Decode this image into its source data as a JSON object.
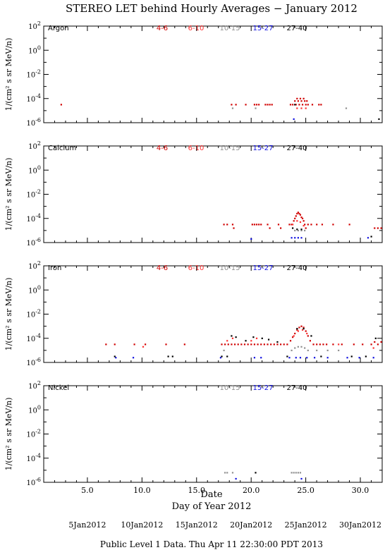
{
  "title": "STEREO LET behind Hourly Averages − January 2012",
  "ylabel": "1/(cm² s sr MeV/n)",
  "xlabel_top": "Date",
  "xlabel": "Day of Year 2012",
  "footer": "Public Level 1 Data. Thu Apr 11 22:30:00 PDT 2013",
  "date_labels": [
    {
      "doy": 5,
      "label": "5Jan2012"
    },
    {
      "doy": 10,
      "label": "10Jan2012"
    },
    {
      "doy": 15,
      "label": "15Jan2012"
    },
    {
      "doy": 20,
      "label": "20Jan2012"
    },
    {
      "doy": 25,
      "label": "25Jan2012"
    },
    {
      "doy": 30,
      "label": "30Jan2012"
    }
  ],
  "series_colors": {
    "4-6": "#d00000",
    "6-10": "#ff3030",
    "10-15": "#909090",
    "15-27": "#1010e0",
    "27-40": "#000000"
  },
  "chart_data": [
    {
      "type": "scatter",
      "panel": "Argon",
      "xlim": [
        1.0,
        32.0
      ],
      "x_ticks": [
        5.0,
        10.0,
        15.0,
        20.0,
        25.0,
        30.0
      ],
      "x_ticks_labels": [
        "5.0",
        "10.0",
        "15.0",
        "20.0",
        "25.0",
        "30.0"
      ],
      "y_log": true,
      "ylim_log10": [
        -6,
        2
      ],
      "y_ticks_exponents": [
        2,
        0,
        -2,
        -4,
        -6
      ],
      "legend": [
        "4-6",
        "6-10",
        "10-15",
        "15-27",
        "27-40"
      ],
      "series": [
        {
          "name": "4-6",
          "points": [
            [
              2.6,
              -4.5
            ],
            [
              18.2,
              -4.5
            ],
            [
              18.6,
              -4.5
            ],
            [
              19.5,
              -4.5
            ],
            [
              20.3,
              -4.5
            ],
            [
              20.5,
              -4.5
            ],
            [
              20.7,
              -4.5
            ],
            [
              21.3,
              -4.5
            ],
            [
              21.5,
              -4.5
            ],
            [
              21.7,
              -4.5
            ],
            [
              21.9,
              -4.5
            ],
            [
              23.6,
              -4.5
            ],
            [
              23.8,
              -4.5
            ],
            [
              24.0,
              -4.2
            ],
            [
              24.1,
              -4.5
            ],
            [
              24.2,
              -4.0
            ],
            [
              24.3,
              -4.2
            ],
            [
              24.4,
              -4.5
            ],
            [
              24.5,
              -4.0
            ],
            [
              24.6,
              -4.2
            ],
            [
              24.7,
              -4.5
            ],
            [
              24.8,
              -4.0
            ],
            [
              24.9,
              -4.2
            ],
            [
              25.0,
              -4.5
            ],
            [
              25.1,
              -4.2
            ],
            [
              25.2,
              -4.5
            ],
            [
              25.6,
              -4.5
            ],
            [
              26.2,
              -4.5
            ],
            [
              26.4,
              -4.5
            ]
          ]
        },
        {
          "name": "6-10",
          "points": [
            [
              24.2,
              -4.8
            ],
            [
              24.6,
              -4.8
            ],
            [
              25.0,
              -4.8
            ]
          ]
        },
        {
          "name": "10-15",
          "points": [
            [
              18.3,
              -4.8
            ],
            [
              20.4,
              -4.8
            ],
            [
              28.7,
              -4.8
            ]
          ]
        },
        {
          "name": "15-27",
          "points": [
            [
              23.9,
              -5.7
            ]
          ]
        },
        {
          "name": "27-40",
          "points": [
            [
              24.0,
              -4.5
            ],
            [
              31.7,
              -5.7
            ]
          ]
        }
      ]
    },
    {
      "type": "scatter",
      "panel": "Calcium",
      "xlim": [
        1.0,
        32.0
      ],
      "x_ticks": [
        5.0,
        10.0,
        15.0,
        20.0,
        25.0,
        30.0
      ],
      "y_log": true,
      "ylim_log10": [
        -6,
        2
      ],
      "y_ticks_exponents": [
        2,
        0,
        -2,
        -4,
        -6
      ],
      "legend": [
        "4-6",
        "6-10",
        "10-15",
        "15-27",
        "27-40"
      ],
      "series": [
        {
          "name": "4-6",
          "points": [
            [
              17.5,
              -4.5
            ],
            [
              17.8,
              -4.5
            ],
            [
              18.3,
              -4.5
            ],
            [
              18.4,
              -4.8
            ],
            [
              20.1,
              -4.5
            ],
            [
              20.3,
              -4.5
            ],
            [
              20.5,
              -4.5
            ],
            [
              20.7,
              -4.5
            ],
            [
              20.9,
              -4.5
            ],
            [
              21.5,
              -4.5
            ],
            [
              21.7,
              -4.8
            ],
            [
              22.5,
              -4.5
            ],
            [
              22.7,
              -4.8
            ],
            [
              23.5,
              -4.5
            ],
            [
              23.7,
              -4.5
            ],
            [
              23.9,
              -4.2
            ],
            [
              24.0,
              -4.0
            ],
            [
              24.1,
              -3.8
            ],
            [
              24.2,
              -3.6
            ],
            [
              24.3,
              -3.5
            ],
            [
              24.4,
              -3.6
            ],
            [
              24.5,
              -3.7
            ],
            [
              24.6,
              -3.9
            ],
            [
              24.7,
              -4.0
            ],
            [
              24.8,
              -4.2
            ],
            [
              24.9,
              -4.5
            ],
            [
              25.0,
              -4.8
            ],
            [
              25.2,
              -4.5
            ],
            [
              25.5,
              -4.5
            ],
            [
              26.0,
              -4.5
            ],
            [
              26.5,
              -4.5
            ],
            [
              27.5,
              -4.5
            ],
            [
              29.0,
              -4.5
            ],
            [
              31.3,
              -4.8
            ],
            [
              31.6,
              -4.8
            ],
            [
              31.9,
              -4.8
            ]
          ]
        },
        {
          "name": "6-10",
          "points": [
            [
              23.8,
              -4.5
            ],
            [
              24.2,
              -4.2
            ],
            [
              24.5,
              -4.3
            ],
            [
              24.8,
              -4.6
            ]
          ]
        },
        {
          "name": "10-15",
          "points": [
            [
              24.0,
              -5.0
            ],
            [
              24.3,
              -5.0
            ],
            [
              24.6,
              -5.0
            ],
            [
              24.9,
              -5.0
            ]
          ]
        },
        {
          "name": "15-27",
          "points": [
            [
              20.0,
              -5.7
            ],
            [
              23.7,
              -5.6
            ],
            [
              24.0,
              -5.6
            ],
            [
              24.3,
              -5.6
            ],
            [
              24.6,
              -5.6
            ],
            [
              30.7,
              -5.6
            ]
          ]
        },
        {
          "name": "27-40",
          "points": [
            [
              23.8,
              -4.8
            ],
            [
              24.2,
              -4.9
            ],
            [
              24.6,
              -4.9
            ],
            [
              31.0,
              -5.5
            ]
          ]
        }
      ]
    },
    {
      "type": "scatter",
      "panel": "Iron",
      "xlim": [
        1.0,
        32.0
      ],
      "x_ticks": [
        5.0,
        10.0,
        15.0,
        20.0,
        25.0,
        30.0
      ],
      "y_log": true,
      "ylim_log10": [
        -6,
        2
      ],
      "y_ticks_exponents": [
        2,
        0,
        -2,
        -4,
        -6
      ],
      "legend": [
        "4-6",
        "6-10",
        "10-15",
        "15-27",
        "27-40"
      ],
      "series": [
        {
          "name": "4-6",
          "points": [
            [
              6.7,
              -4.5
            ],
            [
              7.5,
              -4.5
            ],
            [
              9.3,
              -4.5
            ],
            [
              10.3,
              -4.5
            ],
            [
              12.2,
              -4.5
            ],
            [
              13.9,
              -4.5
            ],
            [
              17.3,
              -4.5
            ],
            [
              17.6,
              -4.5
            ],
            [
              17.9,
              -4.5
            ],
            [
              18.2,
              -4.5
            ],
            [
              18.5,
              -4.5
            ],
            [
              18.8,
              -4.5
            ],
            [
              19.1,
              -4.5
            ],
            [
              19.4,
              -4.5
            ],
            [
              19.7,
              -4.5
            ],
            [
              20.0,
              -4.5
            ],
            [
              20.3,
              -4.5
            ],
            [
              20.6,
              -4.5
            ],
            [
              20.9,
              -4.5
            ],
            [
              21.2,
              -4.5
            ],
            [
              21.5,
              -4.5
            ],
            [
              21.8,
              -4.5
            ],
            [
              22.1,
              -4.5
            ],
            [
              22.4,
              -4.5
            ],
            [
              22.7,
              -4.5
            ],
            [
              23.0,
              -4.5
            ],
            [
              23.3,
              -4.5
            ],
            [
              23.6,
              -4.2
            ],
            [
              23.8,
              -3.9
            ],
            [
              24.0,
              -3.6
            ],
            [
              24.2,
              -3.3
            ],
            [
              24.4,
              -3.1
            ],
            [
              24.6,
              -3.0
            ],
            [
              24.8,
              -3.1
            ],
            [
              25.0,
              -3.4
            ],
            [
              25.2,
              -3.8
            ],
            [
              25.4,
              -4.2
            ],
            [
              25.7,
              -4.5
            ],
            [
              26.0,
              -4.5
            ],
            [
              26.3,
              -4.5
            ],
            [
              26.6,
              -4.5
            ],
            [
              26.9,
              -4.5
            ],
            [
              27.5,
              -4.5
            ],
            [
              28.3,
              -4.5
            ],
            [
              29.4,
              -4.5
            ],
            [
              30.2,
              -4.5
            ],
            [
              31.0,
              -4.5
            ],
            [
              31.3,
              -4.3
            ],
            [
              31.6,
              -4.5
            ],
            [
              31.9,
              -4.3
            ]
          ]
        },
        {
          "name": "6-10",
          "points": [
            [
              10.1,
              -4.7
            ],
            [
              17.8,
              -4.2
            ],
            [
              18.3,
              -4.0
            ],
            [
              20.0,
              -4.2
            ],
            [
              20.5,
              -4.0
            ],
            [
              23.9,
              -3.8
            ],
            [
              24.3,
              -3.4
            ],
            [
              24.7,
              -3.3
            ],
            [
              25.1,
              -3.6
            ],
            [
              28.0,
              -4.5
            ],
            [
              31.2,
              -4.8
            ]
          ]
        },
        {
          "name": "10-15",
          "points": [
            [
              17.5,
              -5.0
            ],
            [
              23.7,
              -5.0
            ],
            [
              24.0,
              -4.8
            ],
            [
              24.3,
              -4.7
            ],
            [
              24.6,
              -4.7
            ],
            [
              24.9,
              -4.8
            ],
            [
              25.2,
              -5.0
            ],
            [
              26.0,
              -5.0
            ],
            [
              27.0,
              -5.0
            ],
            [
              28.0,
              -5.0
            ]
          ]
        },
        {
          "name": "15-27",
          "points": [
            [
              7.6,
              -5.6
            ],
            [
              9.2,
              -5.6
            ],
            [
              17.2,
              -5.6
            ],
            [
              20.3,
              -5.6
            ],
            [
              20.9,
              -5.6
            ],
            [
              23.5,
              -5.6
            ],
            [
              24.1,
              -5.6
            ],
            [
              24.5,
              -5.6
            ],
            [
              25.1,
              -5.6
            ],
            [
              25.8,
              -5.6
            ],
            [
              27.0,
              -5.6
            ],
            [
              28.8,
              -5.6
            ],
            [
              29.9,
              -5.6
            ],
            [
              31.2,
              -5.6
            ]
          ]
        },
        {
          "name": "27-40",
          "points": [
            [
              7.5,
              -5.5
            ],
            [
              12.4,
              -5.5
            ],
            [
              12.8,
              -5.5
            ],
            [
              17.3,
              -5.5
            ],
            [
              17.8,
              -5.5
            ],
            [
              18.2,
              -3.8
            ],
            [
              18.6,
              -3.9
            ],
            [
              19.5,
              -4.2
            ],
            [
              20.2,
              -3.9
            ],
            [
              21.0,
              -4.0
            ],
            [
              21.6,
              -4.1
            ],
            [
              22.4,
              -4.3
            ],
            [
              23.3,
              -5.5
            ],
            [
              24.2,
              -3.2
            ],
            [
              24.8,
              -3.2
            ],
            [
              25.5,
              -3.8
            ],
            [
              26.4,
              -5.5
            ],
            [
              29.2,
              -5.5
            ],
            [
              30.5,
              -5.5
            ],
            [
              31.4,
              -4.0
            ]
          ]
        }
      ]
    },
    {
      "type": "scatter",
      "panel": "Nickel",
      "xlim": [
        1.0,
        32.0
      ],
      "x_ticks": [
        5.0,
        10.0,
        15.0,
        20.0,
        25.0,
        30.0
      ],
      "y_log": true,
      "ylim_log10": [
        -6,
        2
      ],
      "y_ticks_exponents": [
        2,
        0,
        -2,
        -4,
        -6
      ],
      "legend": [
        "10-15",
        "15-27",
        "27-40"
      ],
      "series": [
        {
          "name": "10-15",
          "points": [
            [
              17.6,
              -5.2
            ],
            [
              17.8,
              -5.2
            ],
            [
              18.3,
              -5.2
            ],
            [
              23.7,
              -5.2
            ],
            [
              23.9,
              -5.2
            ],
            [
              24.1,
              -5.2
            ],
            [
              24.3,
              -5.2
            ],
            [
              24.5,
              -5.2
            ]
          ]
        },
        {
          "name": "15-27",
          "points": [
            [
              18.6,
              -5.7
            ],
            [
              24.6,
              -5.7
            ]
          ]
        },
        {
          "name": "27-40",
          "points": [
            [
              20.4,
              -5.2
            ]
          ]
        }
      ]
    }
  ]
}
